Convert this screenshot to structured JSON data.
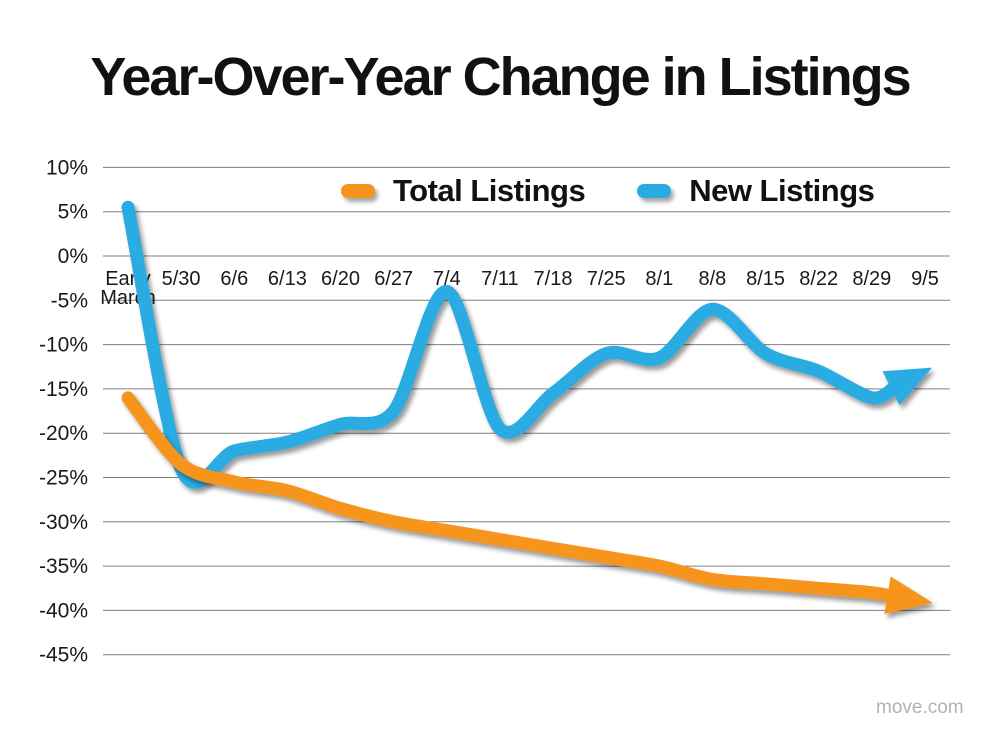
{
  "title": "Year-Over-Year Change in Listings",
  "watermark": "move.com",
  "colors": {
    "total": "#F7941E",
    "new": "#29ABE2",
    "gridline": "#808080",
    "axis_text": "#1a1a1a",
    "title_text": "#111111",
    "watermark_text": "#b2b2b2"
  },
  "legend": {
    "items": [
      {
        "label": "Total Listings",
        "color_key": "total"
      },
      {
        "label": "New Listings",
        "color_key": "new"
      }
    ]
  },
  "chart_data": {
    "type": "line",
    "title": "Year-Over-Year Change in Listings",
    "categories": [
      "Early March",
      "5/30",
      "6/6",
      "6/13",
      "6/20",
      "6/27",
      "7/4",
      "7/11",
      "7/18",
      "7/25",
      "8/1",
      "8/8",
      "8/15",
      "8/22",
      "8/29",
      "9/5"
    ],
    "series": [
      {
        "name": "Total Listings",
        "color": "#F7941E",
        "values": [
          -16,
          -23.5,
          -25.5,
          -26.5,
          -28.5,
          -30,
          -31,
          -32,
          -33,
          -34,
          -35,
          -36.5,
          -37,
          -37.5,
          -38,
          -39
        ]
      },
      {
        "name": "New Listings",
        "color": "#29ABE2",
        "values": [
          5.5,
          -24,
          -22,
          -21,
          -19,
          -17.5,
          -4,
          -19.5,
          -15.5,
          -11,
          -11.5,
          -6,
          -11,
          -13,
          -16,
          -13
        ]
      }
    ],
    "unit": "%",
    "yticks": [
      10,
      5,
      0,
      -5,
      -10,
      -15,
      -20,
      -25,
      -30,
      -35,
      -40,
      -45
    ],
    "ylim": [
      -45,
      10
    ],
    "grid": true,
    "legend_position": "top-center",
    "arrow_ends": true,
    "draw_order": [
      1,
      0
    ]
  }
}
